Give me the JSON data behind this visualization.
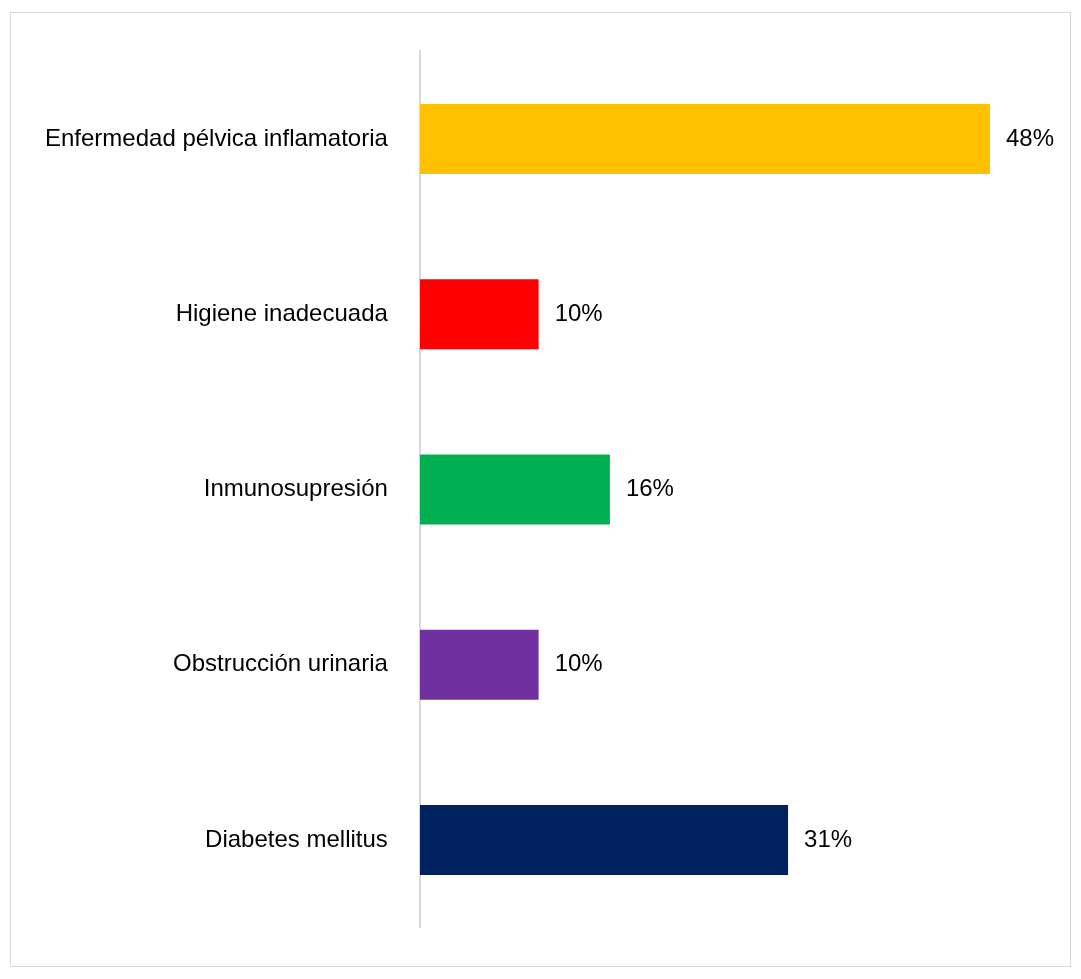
{
  "chart_data": {
    "type": "bar",
    "orientation": "horizontal",
    "categories": [
      "Enfermedad pélvica inflamatoria",
      "Higiene inadecuada",
      "Inmunosupresión",
      "Obstrucción urinaria",
      "Diabetes mellitus"
    ],
    "values": [
      48,
      10,
      16,
      10,
      31
    ],
    "colors": [
      "#ffc000",
      "#ff0000",
      "#00b050",
      "#7030a0",
      "#002060"
    ],
    "value_labels": [
      "48%",
      "10%",
      "16%",
      "10%",
      "31%"
    ],
    "legend": false,
    "tick_labels": "y"
  }
}
